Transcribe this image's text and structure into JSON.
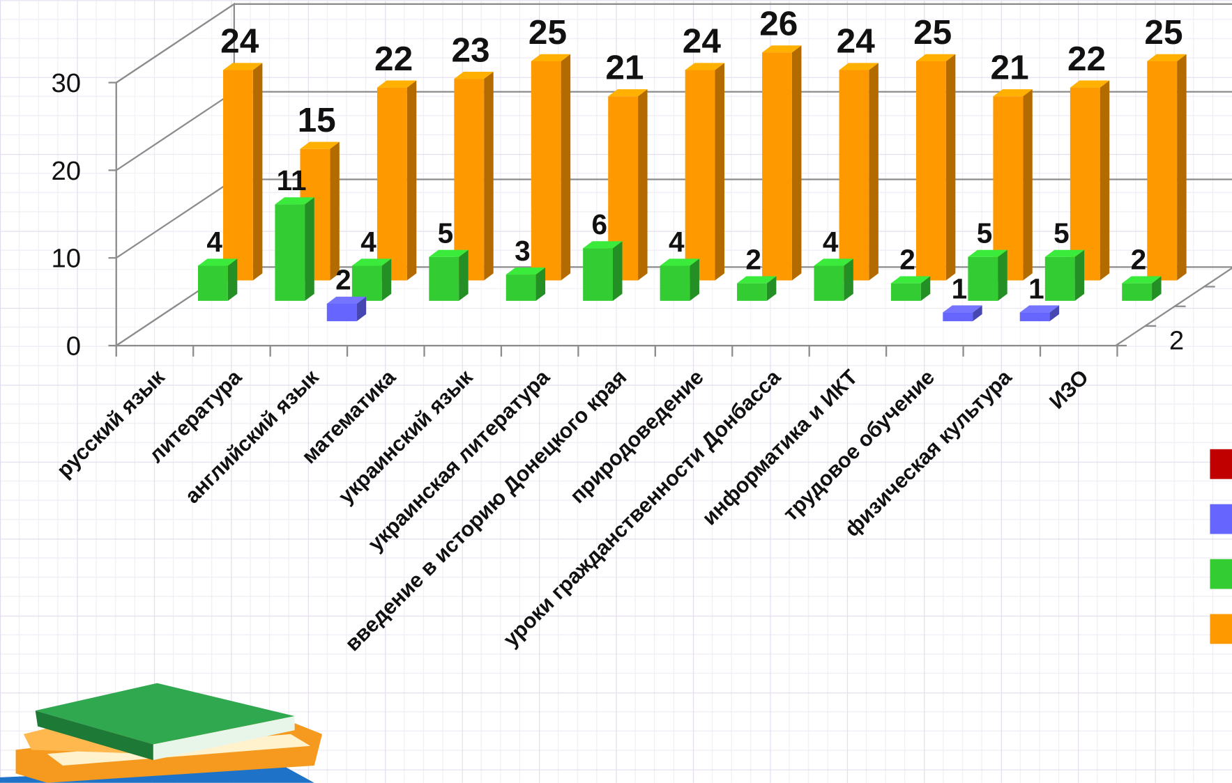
{
  "chart_data": {
    "type": "bar3d",
    "categories": [
      "русский язык",
      "литература",
      "английский язык",
      "математика",
      "украинский язык",
      "украинская литература",
      "введение в историю Донецкого края",
      "природоведение",
      "уроки гражданственности Донбасса",
      "информатика и ИКТ",
      "трудовое обучение",
      "физическая культура",
      "ИЗО"
    ],
    "series": [
      {
        "color": "#c00000",
        "values": [
          null,
          null,
          null,
          null,
          null,
          null,
          null,
          null,
          null,
          null,
          null,
          null,
          null
        ]
      },
      {
        "color": "#6666ff",
        "values": [
          null,
          null,
          2,
          null,
          null,
          null,
          null,
          null,
          null,
          null,
          1,
          1,
          null
        ]
      },
      {
        "color": "#33cc33",
        "values": [
          4,
          11,
          4,
          5,
          3,
          6,
          4,
          2,
          4,
          2,
          5,
          5,
          2
        ]
      },
      {
        "color": "#ff9900",
        "values": [
          24,
          15,
          22,
          23,
          25,
          21,
          24,
          26,
          24,
          25,
          21,
          22,
          25
        ]
      }
    ],
    "ylim": [
      0,
      30
    ],
    "yticks": [
      0,
      10,
      20,
      30
    ],
    "depth_labels": [
      "2"
    ],
    "grid": true
  }
}
